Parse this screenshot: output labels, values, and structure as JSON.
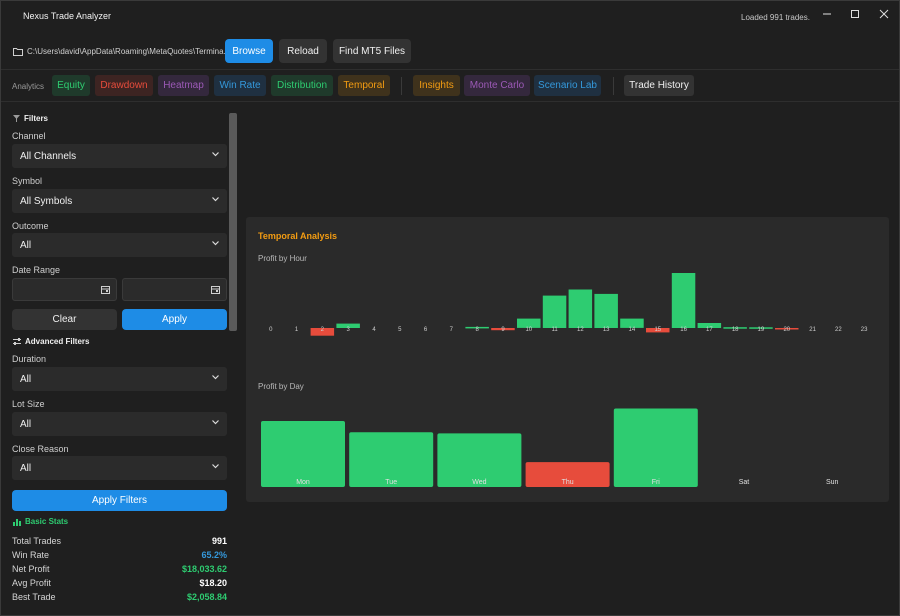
{
  "window": {
    "title": "Nexus Trade Analyzer",
    "status": "Loaded 991 trades."
  },
  "pathbar": {
    "path": "C:\\Users\\david\\AppData\\Roaming\\MetaQuotes\\Termina...",
    "browse_label": "Browse",
    "reload_label": "Reload",
    "find_label": "Find MT5 Files"
  },
  "tabs": {
    "label": "Analytics",
    "items": [
      {
        "label": "Equity",
        "color": "#2ecc71"
      },
      {
        "label": "Drawdown",
        "color": "#e74c3c"
      },
      {
        "label": "Heatmap",
        "color": "#9b59b6"
      },
      {
        "label": "Win Rate",
        "color": "#3498db"
      },
      {
        "label": "Distribution",
        "color": "#2ecc71"
      },
      {
        "label": "Temporal",
        "color": "#f39c12"
      },
      {
        "label": "Insights",
        "color": "#f39c12"
      },
      {
        "label": "Monte Carlo",
        "color": "#9b59b6"
      },
      {
        "label": "Scenario Lab",
        "color": "#3498db"
      },
      {
        "label": "Trade History",
        "color": "#f0f0f0"
      }
    ]
  },
  "filters": {
    "heading": "Filters",
    "channel_label": "Channel",
    "channel_value": "All Channels",
    "symbol_label": "Symbol",
    "symbol_value": "All Symbols",
    "outcome_label": "Outcome",
    "outcome_value": "All",
    "date_label": "Date Range",
    "clear_label": "Clear",
    "apply_label": "Apply"
  },
  "advanced": {
    "heading": "Advanced Filters",
    "duration_label": "Duration",
    "duration_value": "All",
    "lot_label": "Lot Size",
    "lot_value": "All",
    "close_label": "Close Reason",
    "close_value": "All",
    "apply_filters_label": "Apply Filters"
  },
  "stats": {
    "heading": "Basic Stats",
    "rows": [
      {
        "label": "Total Trades",
        "value": "991",
        "color": "#ffffff"
      },
      {
        "label": "Win Rate",
        "value": "65.2%",
        "color": "#3498db"
      },
      {
        "label": "Net Profit",
        "value": "$18,033.62",
        "color": "#2ecc71"
      },
      {
        "label": "Avg Profit",
        "value": "$18.20",
        "color": "#ffffff"
      },
      {
        "label": "Best Trade",
        "value": "$2,058.84",
        "color": "#2ecc71"
      }
    ]
  },
  "panel": {
    "title": "Temporal Analysis",
    "hour_chart_title": "Profit by Hour",
    "day_chart_title": "Profit by Day"
  },
  "colors": {
    "positive": "#2ecc71",
    "negative": "#e74c3c",
    "accent": "#1e8ce6"
  },
  "chart_data": [
    {
      "type": "bar",
      "title": "Profit by Hour",
      "categories": [
        "0",
        "1",
        "2",
        "3",
        "4",
        "5",
        "6",
        "7",
        "8",
        "9",
        "10",
        "11",
        "12",
        "13",
        "14",
        "15",
        "16",
        "17",
        "18",
        "19",
        "20",
        "21",
        "22",
        "23"
      ],
      "values": [
        0,
        0,
        -140,
        80,
        0,
        0,
        0,
        0,
        20,
        -40,
        170,
        590,
        700,
        620,
        170,
        -80,
        1000,
        90,
        15,
        12,
        -12,
        0,
        0,
        0
      ],
      "ylim": [
        -1200,
        1200
      ]
    },
    {
      "type": "bar",
      "title": "Profit by Day",
      "categories": [
        "Mon",
        "Tue",
        "Wed",
        "Thu",
        "Fri",
        "Sat",
        "Sun"
      ],
      "values": [
        5300,
        4400,
        4300,
        -2000,
        6300,
        0,
        0
      ],
      "ylim": [
        -6500,
        6500
      ]
    }
  ]
}
